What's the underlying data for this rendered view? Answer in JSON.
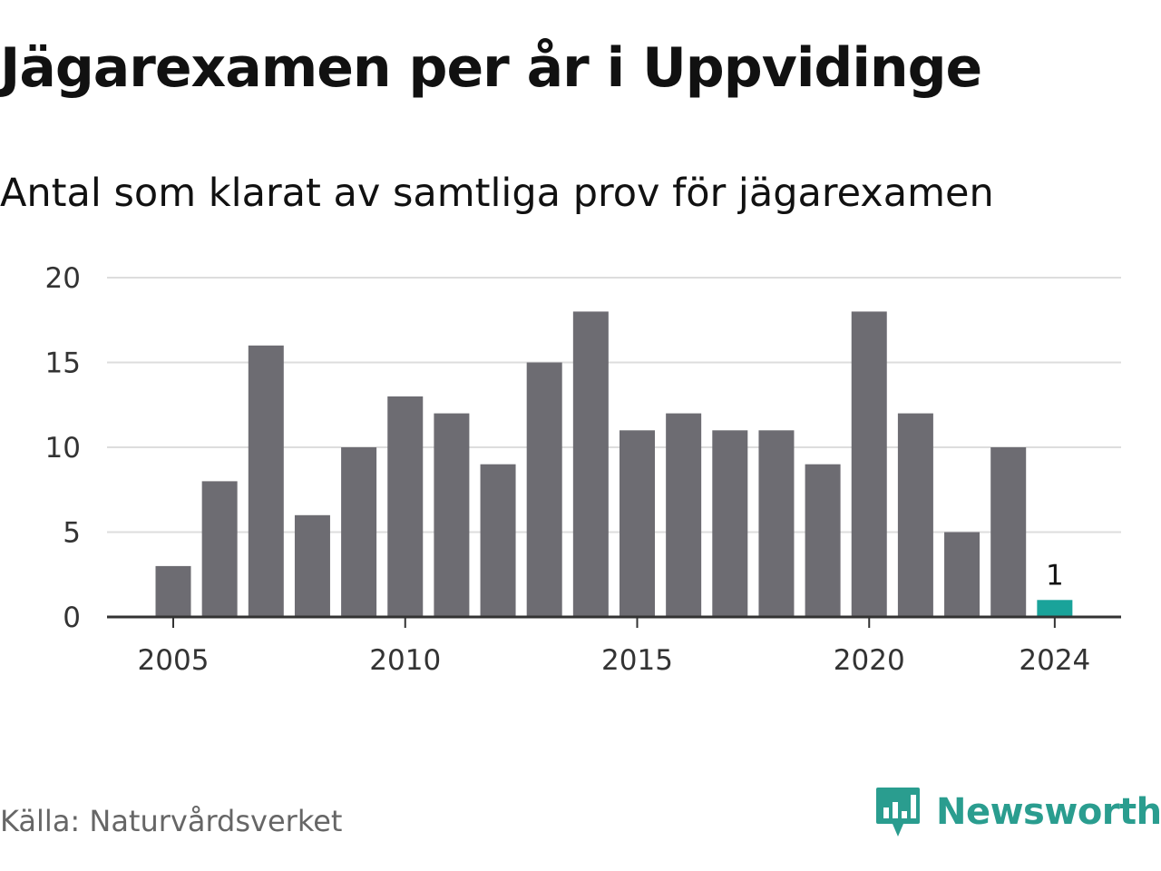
{
  "title": "Jägarexamen per år i Uppvidinge",
  "subtitle": "Antal som klarat av samtliga prov för jägarexamen",
  "source": "Källa: Naturvårdsverket",
  "brand": {
    "name": "Newsworthy",
    "icon": "newsworthy-logo-icon",
    "color": "#2a9d8f"
  },
  "colors": {
    "bar": "#6d6c72",
    "highlight": "#1aa39a",
    "grid": "#dddddd",
    "axis": "#333333"
  },
  "chart_data": {
    "type": "bar",
    "categories": [
      2005,
      2006,
      2007,
      2008,
      2009,
      2010,
      2011,
      2012,
      2013,
      2014,
      2015,
      2016,
      2017,
      2018,
      2019,
      2020,
      2021,
      2022,
      2023,
      2024
    ],
    "values": [
      3,
      8,
      16,
      6,
      10,
      13,
      12,
      9,
      15,
      18,
      11,
      12,
      11,
      11,
      9,
      18,
      12,
      5,
      10,
      1
    ],
    "highlight_category": 2024,
    "data_labels": [
      {
        "category": 2024,
        "text": "1"
      }
    ],
    "x_tick_labels": [
      "2005",
      "2010",
      "2015",
      "2020",
      "2024"
    ],
    "y_ticks": [
      0,
      5,
      10,
      15,
      20
    ],
    "ylim": [
      0,
      20
    ],
    "grid": true,
    "legend": "none"
  }
}
